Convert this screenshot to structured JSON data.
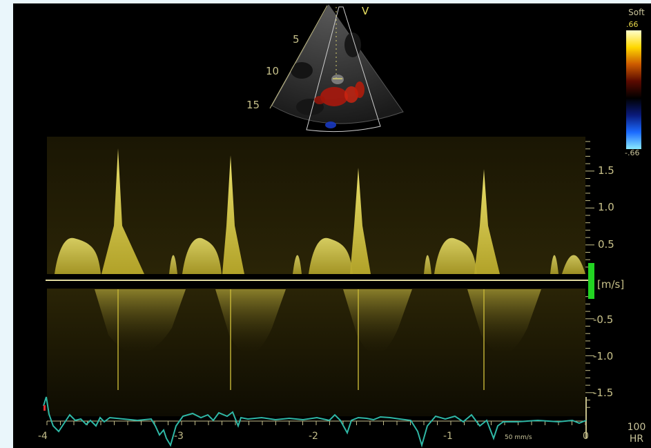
{
  "sector": {
    "mode_label": "V",
    "depth_marks": [
      "5",
      "10",
      "15"
    ]
  },
  "colorbar": {
    "title": "Soft",
    "max_label": ".66",
    "min_label": "-.66",
    "colors": [
      "#ffffcc",
      "#ffd800",
      "#cc5a00",
      "#5a0a00",
      "#000000",
      "#0a1a7a",
      "#1a6aff",
      "#8aeaff"
    ]
  },
  "spectral": {
    "velocity_unit": "[m/s]",
    "velocity_ticks": [
      "1.5",
      "1.0",
      "0.5",
      "-0.5",
      "-1.0",
      "-1.5"
    ],
    "time_ticks": [
      "-4",
      "-3",
      "-2",
      "-1",
      "0"
    ],
    "sweep_speed": "50 mm/s",
    "heart_rate_value": "100",
    "heart_rate_label": "HR",
    "doppler_color": "#e8d84a",
    "baseline_color": "#e2dca0",
    "ecg_color": "#2fb8a6",
    "marker_color": "#22d422"
  }
}
